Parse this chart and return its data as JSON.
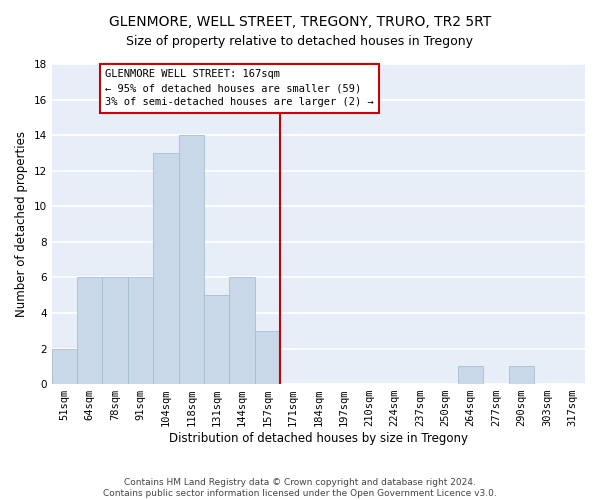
{
  "title": "GLENMORE, WELL STREET, TREGONY, TRURO, TR2 5RT",
  "subtitle": "Size of property relative to detached houses in Tregony",
  "xlabel": "Distribution of detached houses by size in Tregony",
  "ylabel": "Number of detached properties",
  "categories": [
    "51sqm",
    "64sqm",
    "78sqm",
    "91sqm",
    "104sqm",
    "118sqm",
    "131sqm",
    "144sqm",
    "157sqm",
    "171sqm",
    "184sqm",
    "197sqm",
    "210sqm",
    "224sqm",
    "237sqm",
    "250sqm",
    "264sqm",
    "277sqm",
    "290sqm",
    "303sqm",
    "317sqm"
  ],
  "values": [
    2,
    6,
    6,
    6,
    13,
    14,
    5,
    6,
    3,
    0,
    0,
    0,
    0,
    0,
    0,
    0,
    1,
    0,
    1,
    0,
    0
  ],
  "bar_color": "#c8d8e8",
  "bar_edgecolor": "#a0b8cc",
  "annotation_text_line1": "GLENMORE WELL STREET: 167sqm",
  "annotation_text_line2": "← 95% of detached houses are smaller (59)",
  "annotation_text_line3": "3% of semi-detached houses are larger (2) →",
  "annotation_box_facecolor": "#ffffff",
  "annotation_box_edgecolor": "#cc0000",
  "vline_color": "#cc0000",
  "ylim": [
    0,
    18
  ],
  "yticks": [
    0,
    2,
    4,
    6,
    8,
    10,
    12,
    14,
    16,
    18
  ],
  "background_color": "#e8eef8",
  "grid_color": "#ffffff",
  "footer": "Contains HM Land Registry data © Crown copyright and database right 2024.\nContains public sector information licensed under the Open Government Licence v3.0.",
  "title_fontsize": 10,
  "subtitle_fontsize": 9,
  "xlabel_fontsize": 8.5,
  "ylabel_fontsize": 8.5,
  "tick_fontsize": 7.5,
  "annotation_fontsize": 7.5,
  "footer_fontsize": 6.5
}
